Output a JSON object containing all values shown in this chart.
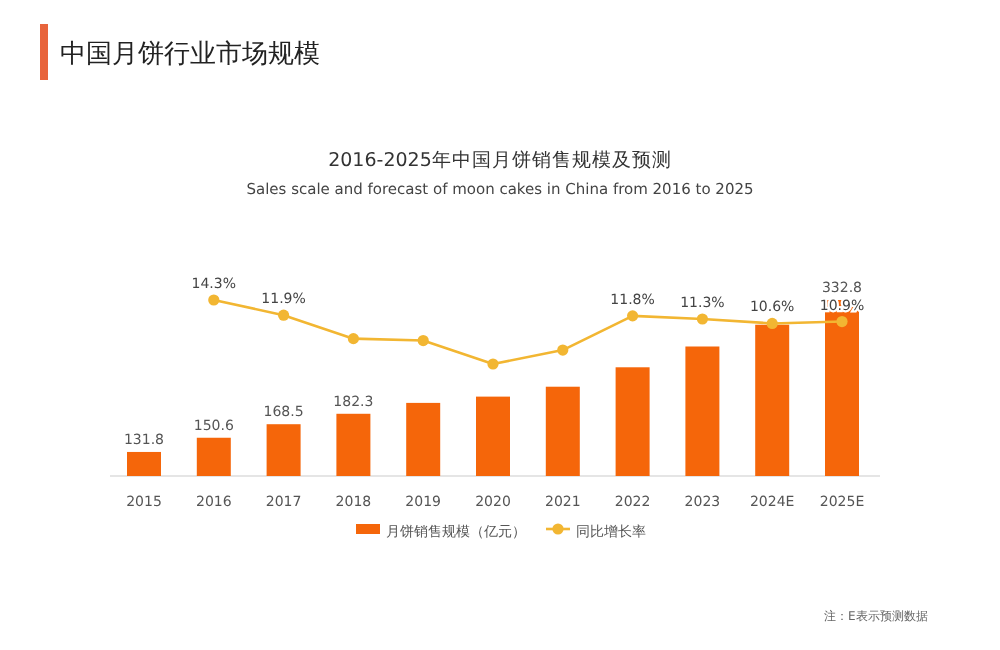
{
  "chart_data": {
    "type": "bar",
    "title": "2016-2025年中国月饼销售规模及预测",
    "subtitle": "Sales scale and forecast of moon cakes in China from 2016 to 2025",
    "annotations": [
      "中国月饼行业市场规模",
      "注：E表示预测数据"
    ],
    "categories": [
      "2015",
      "2016",
      "2017",
      "2018",
      "2019",
      "2020",
      "2021",
      "2022",
      "2023",
      "2024E",
      "2025E"
    ],
    "series": [
      {
        "name": "月饼销售规模（亿元）",
        "color": "#f5660a",
        "values": [
          131.8,
          150.6,
          168.5,
          182.3,
          196.7,
          205.0,
          218.1,
          243.8,
          271.3,
          300.1,
          332.8
        ],
        "value_labels": [
          "131.8",
          "150.6",
          "168.5",
          "182.3",
          null,
          null,
          null,
          null,
          null,
          null,
          "332.8"
        ]
      },
      {
        "name": "同比增长率",
        "type": "line",
        "axis": "y2",
        "color": "#f2b632",
        "values": [
          null,
          14.3,
          11.9,
          8.2,
          7.9,
          4.2,
          6.4,
          11.8,
          11.3,
          10.6,
          10.9
        ],
        "value_labels": [
          null,
          "14.3%",
          "11.9%",
          null,
          null,
          null,
          null,
          "11.8%",
          "11.3%",
          "10.6%",
          "10.9%"
        ]
      }
    ],
    "ylim": [
      100,
      332.8
    ],
    "tick_labels": "x",
    "legend": "bottom",
    "marker": "circle"
  }
}
